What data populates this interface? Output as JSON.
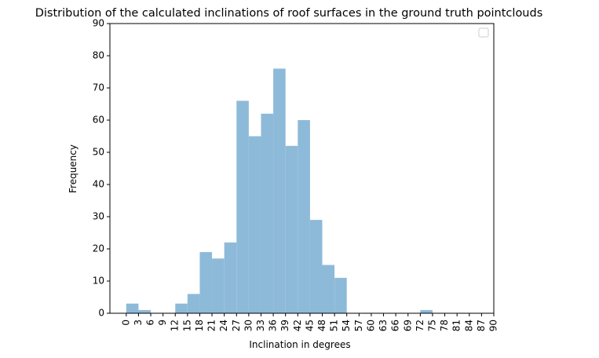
{
  "chart_data": {
    "type": "bar",
    "title": "Distribution of the calculated inclinations of roof surfaces in the ground truth pointclouds",
    "xlabel": "Inclination in degrees",
    "ylabel": "Frequency",
    "xlim": [
      -4,
      90
    ],
    "ylim": [
      0,
      90
    ],
    "bin_width": 3,
    "bins": [
      {
        "start": 0,
        "value": 3
      },
      {
        "start": 3,
        "value": 1
      },
      {
        "start": 12,
        "value": 3
      },
      {
        "start": 15,
        "value": 6
      },
      {
        "start": 18,
        "value": 19
      },
      {
        "start": 21,
        "value": 17
      },
      {
        "start": 24,
        "value": 22
      },
      {
        "start": 27,
        "value": 66
      },
      {
        "start": 30,
        "value": 55
      },
      {
        "start": 33,
        "value": 62
      },
      {
        "start": 36,
        "value": 76
      },
      {
        "start": 39,
        "value": 52
      },
      {
        "start": 42,
        "value": 60
      },
      {
        "start": 45,
        "value": 29
      },
      {
        "start": 48,
        "value": 15
      },
      {
        "start": 51,
        "value": 11
      },
      {
        "start": 72,
        "value": 1
      }
    ],
    "x_ticks": [
      "0",
      "3",
      "6",
      "9",
      "12",
      "15",
      "18",
      "21",
      "24",
      "27",
      "30",
      "33",
      "36",
      "39",
      "42",
      "45",
      "48",
      "51",
      "54",
      "57",
      "60",
      "63",
      "66",
      "69",
      "72",
      "75",
      "78",
      "81",
      "84",
      "87",
      "90"
    ],
    "y_ticks": [
      "0",
      "10",
      "20",
      "30",
      "40",
      "50",
      "60",
      "70",
      "80",
      "90"
    ],
    "bar_color": "#8ebad9",
    "legend": "top-right",
    "legend_entries": [],
    "grid": false
  }
}
